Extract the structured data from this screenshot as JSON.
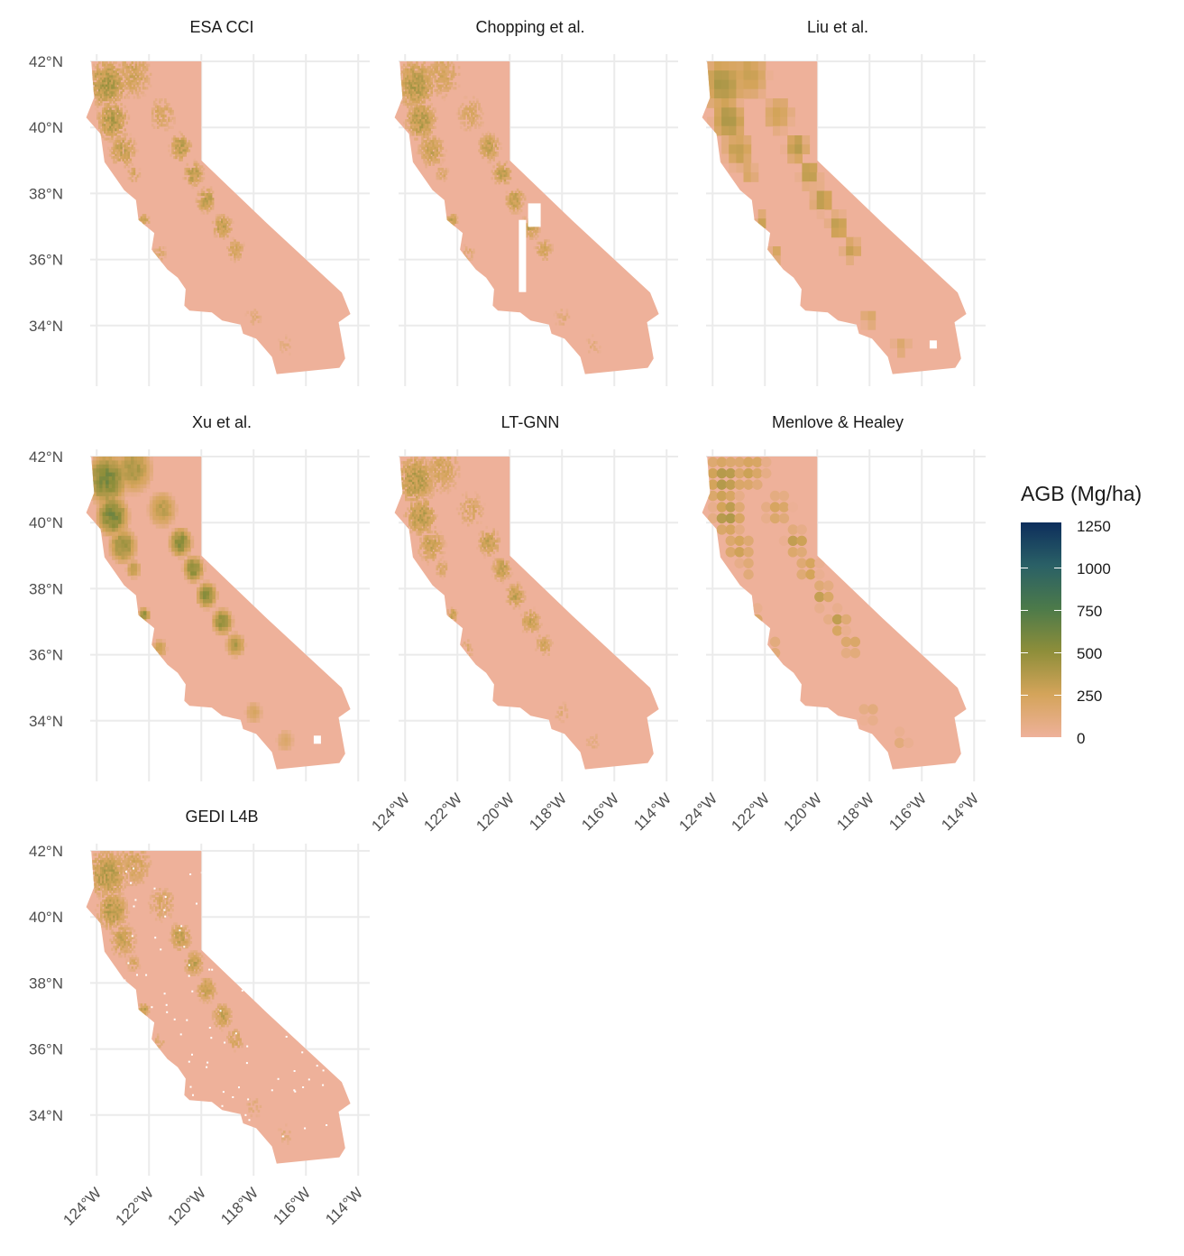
{
  "panels": [
    {
      "id": "esa",
      "title": "ESA CCI",
      "style": "fine",
      "level": 0.32,
      "gap": null
    },
    {
      "id": "chopping",
      "title": "Chopping et al.",
      "style": "fine",
      "level": 0.3,
      "gap": "valley"
    },
    {
      "id": "liu",
      "title": "Liu et al.",
      "style": "coarse",
      "level": 0.34,
      "gap": "desert"
    },
    {
      "id": "xu",
      "title": "Xu et al.",
      "style": "smooth",
      "level": 0.45,
      "gap": "desert"
    },
    {
      "id": "ltgnn",
      "title": "LT-GNN",
      "style": "fine",
      "level": 0.3,
      "gap": null
    },
    {
      "id": "menlove",
      "title": "Menlove & Healey",
      "style": "hex",
      "level": 0.3,
      "gap": null
    },
    {
      "id": "gedi",
      "title": "GEDI L4B",
      "style": "speckle",
      "level": 0.3,
      "gap": "speckle"
    }
  ],
  "axes": {
    "y_ticks": [
      "42°N",
      "40°N",
      "38°N",
      "36°N",
      "34°N"
    ],
    "x_ticks": [
      "124°W",
      "122°W",
      "120°W",
      "118°W",
      "116°W",
      "114°W"
    ]
  },
  "legend": {
    "title": "AGB (Mg/ha)",
    "breaks": [
      "1250",
      "1000",
      "750",
      "500",
      "250",
      "0"
    ],
    "range": [
      0,
      1300
    ],
    "palette": [
      "#eeb19a",
      "#d4a45a",
      "#8e8e3a",
      "#4c7a4a",
      "#2a6066",
      "#0d2e5c"
    ]
  }
}
